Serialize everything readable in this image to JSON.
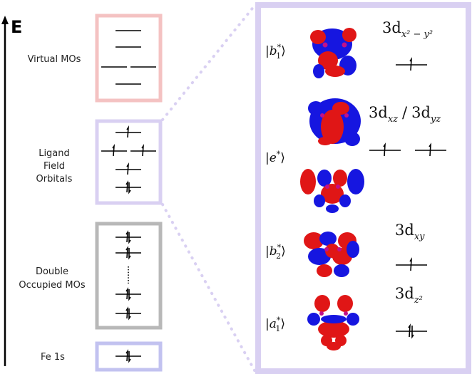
{
  "axis": {
    "label": "E"
  },
  "left_groups": {
    "virtual": {
      "label": "Virtual MOs",
      "color": "#f4c2c2"
    },
    "ligand_field": {
      "label_lines": [
        "Ligand",
        "Field",
        "Orbitals"
      ],
      "color": "#d9d0f2"
    },
    "double_occupied": {
      "label_lines": [
        "Double",
        "Occupied MOs"
      ],
      "color": "#b8b8b8"
    },
    "fe1s": {
      "label": "Fe 1s",
      "color": "#c2c2f0"
    }
  },
  "right_panel": {
    "color": "#d9d0f2",
    "orbitals": [
      {
        "ket": "b",
        "sub": "1",
        "sup": "*",
        "d_base": "3d",
        "d_sub": "x² − y²",
        "electrons": 1
      },
      {
        "ket": "e",
        "sub": "",
        "sup": "*",
        "d_base": "3d",
        "d_sub": "xz",
        "separator": "/",
        "d2_base": "3d",
        "d2_sub": "yz",
        "electrons": 1
      },
      {
        "ket": "b",
        "sub": "2",
        "sup": "*",
        "d_base": "3d",
        "d_sub": "xy",
        "electrons": 1
      },
      {
        "ket": "a",
        "sub": "1",
        "sup": "*",
        "d_base": "3d",
        "d_sub": "z²",
        "electrons": 2
      }
    ]
  },
  "lobe_colors": {
    "positive": "#e01616",
    "negative": "#1616e0",
    "center": "#c0118a"
  }
}
